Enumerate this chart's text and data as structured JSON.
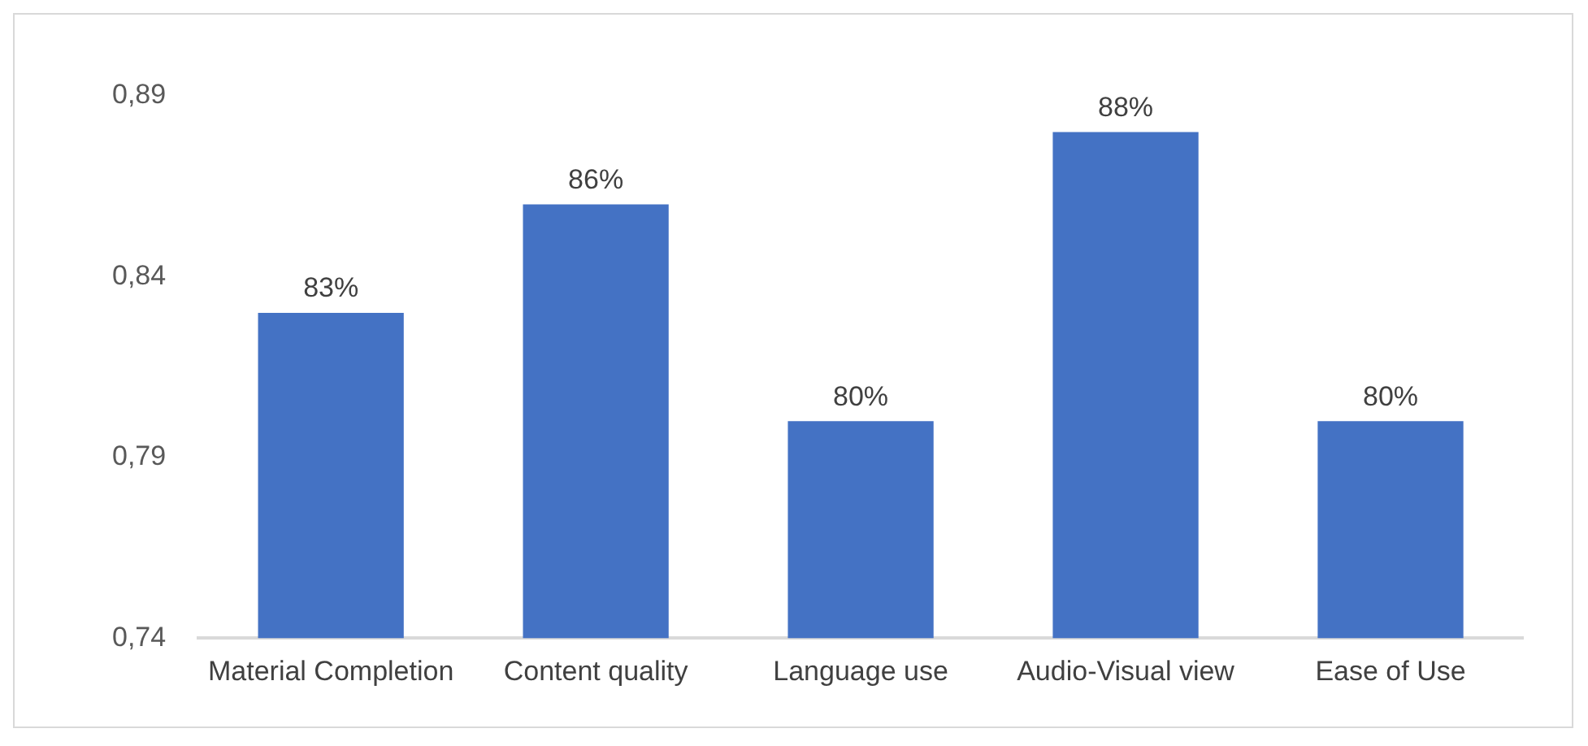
{
  "chart_data": {
    "type": "bar",
    "categories": [
      "Material Completion",
      "Content quality",
      "Language use",
      "Audio-Visual view",
      "Ease of Use"
    ],
    "values": [
      0.83,
      0.86,
      0.8,
      0.88,
      0.8
    ],
    "value_labels": [
      "83%",
      "86%",
      "80%",
      "88%",
      "80%"
    ],
    "color": "#4472c4",
    "ylim": [
      0.74,
      0.89
    ],
    "yticks": [
      {
        "value": 0.74,
        "label": "0,74"
      },
      {
        "value": 0.79,
        "label": "0,79"
      },
      {
        "value": 0.84,
        "label": "0,84"
      },
      {
        "value": 0.89,
        "label": "0,89"
      }
    ],
    "grid": false,
    "legend": false
  }
}
